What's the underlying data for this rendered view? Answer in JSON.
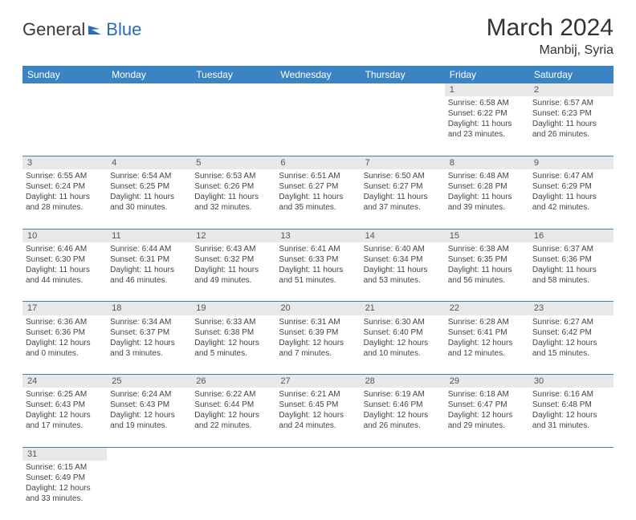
{
  "logo": {
    "part1": "General",
    "part2": "Blue"
  },
  "title": "March 2024",
  "location": "Manbij, Syria",
  "colors": {
    "header_blue": "#3b84c4",
    "daynum_bg": "#e8e8e8",
    "border": "#3b84c4",
    "logo_blue": "#2a6db5",
    "text": "#333333"
  },
  "weekdays": [
    "Sunday",
    "Monday",
    "Tuesday",
    "Wednesday",
    "Thursday",
    "Friday",
    "Saturday"
  ],
  "weeks": [
    {
      "nums": [
        "",
        "",
        "",
        "",
        "",
        "1",
        "2"
      ],
      "cells": [
        [],
        [],
        [],
        [],
        [],
        [
          "Sunrise: 6:58 AM",
          "Sunset: 6:22 PM",
          "Daylight: 11 hours",
          "and 23 minutes."
        ],
        [
          "Sunrise: 6:57 AM",
          "Sunset: 6:23 PM",
          "Daylight: 11 hours",
          "and 26 minutes."
        ]
      ]
    },
    {
      "nums": [
        "3",
        "4",
        "5",
        "6",
        "7",
        "8",
        "9"
      ],
      "cells": [
        [
          "Sunrise: 6:55 AM",
          "Sunset: 6:24 PM",
          "Daylight: 11 hours",
          "and 28 minutes."
        ],
        [
          "Sunrise: 6:54 AM",
          "Sunset: 6:25 PM",
          "Daylight: 11 hours",
          "and 30 minutes."
        ],
        [
          "Sunrise: 6:53 AM",
          "Sunset: 6:26 PM",
          "Daylight: 11 hours",
          "and 32 minutes."
        ],
        [
          "Sunrise: 6:51 AM",
          "Sunset: 6:27 PM",
          "Daylight: 11 hours",
          "and 35 minutes."
        ],
        [
          "Sunrise: 6:50 AM",
          "Sunset: 6:27 PM",
          "Daylight: 11 hours",
          "and 37 minutes."
        ],
        [
          "Sunrise: 6:48 AM",
          "Sunset: 6:28 PM",
          "Daylight: 11 hours",
          "and 39 minutes."
        ],
        [
          "Sunrise: 6:47 AM",
          "Sunset: 6:29 PM",
          "Daylight: 11 hours",
          "and 42 minutes."
        ]
      ]
    },
    {
      "nums": [
        "10",
        "11",
        "12",
        "13",
        "14",
        "15",
        "16"
      ],
      "cells": [
        [
          "Sunrise: 6:46 AM",
          "Sunset: 6:30 PM",
          "Daylight: 11 hours",
          "and 44 minutes."
        ],
        [
          "Sunrise: 6:44 AM",
          "Sunset: 6:31 PM",
          "Daylight: 11 hours",
          "and 46 minutes."
        ],
        [
          "Sunrise: 6:43 AM",
          "Sunset: 6:32 PM",
          "Daylight: 11 hours",
          "and 49 minutes."
        ],
        [
          "Sunrise: 6:41 AM",
          "Sunset: 6:33 PM",
          "Daylight: 11 hours",
          "and 51 minutes."
        ],
        [
          "Sunrise: 6:40 AM",
          "Sunset: 6:34 PM",
          "Daylight: 11 hours",
          "and 53 minutes."
        ],
        [
          "Sunrise: 6:38 AM",
          "Sunset: 6:35 PM",
          "Daylight: 11 hours",
          "and 56 minutes."
        ],
        [
          "Sunrise: 6:37 AM",
          "Sunset: 6:36 PM",
          "Daylight: 11 hours",
          "and 58 minutes."
        ]
      ]
    },
    {
      "nums": [
        "17",
        "18",
        "19",
        "20",
        "21",
        "22",
        "23"
      ],
      "cells": [
        [
          "Sunrise: 6:36 AM",
          "Sunset: 6:36 PM",
          "Daylight: 12 hours",
          "and 0 minutes."
        ],
        [
          "Sunrise: 6:34 AM",
          "Sunset: 6:37 PM",
          "Daylight: 12 hours",
          "and 3 minutes."
        ],
        [
          "Sunrise: 6:33 AM",
          "Sunset: 6:38 PM",
          "Daylight: 12 hours",
          "and 5 minutes."
        ],
        [
          "Sunrise: 6:31 AM",
          "Sunset: 6:39 PM",
          "Daylight: 12 hours",
          "and 7 minutes."
        ],
        [
          "Sunrise: 6:30 AM",
          "Sunset: 6:40 PM",
          "Daylight: 12 hours",
          "and 10 minutes."
        ],
        [
          "Sunrise: 6:28 AM",
          "Sunset: 6:41 PM",
          "Daylight: 12 hours",
          "and 12 minutes."
        ],
        [
          "Sunrise: 6:27 AM",
          "Sunset: 6:42 PM",
          "Daylight: 12 hours",
          "and 15 minutes."
        ]
      ]
    },
    {
      "nums": [
        "24",
        "25",
        "26",
        "27",
        "28",
        "29",
        "30"
      ],
      "cells": [
        [
          "Sunrise: 6:25 AM",
          "Sunset: 6:43 PM",
          "Daylight: 12 hours",
          "and 17 minutes."
        ],
        [
          "Sunrise: 6:24 AM",
          "Sunset: 6:43 PM",
          "Daylight: 12 hours",
          "and 19 minutes."
        ],
        [
          "Sunrise: 6:22 AM",
          "Sunset: 6:44 PM",
          "Daylight: 12 hours",
          "and 22 minutes."
        ],
        [
          "Sunrise: 6:21 AM",
          "Sunset: 6:45 PM",
          "Daylight: 12 hours",
          "and 24 minutes."
        ],
        [
          "Sunrise: 6:19 AM",
          "Sunset: 6:46 PM",
          "Daylight: 12 hours",
          "and 26 minutes."
        ],
        [
          "Sunrise: 6:18 AM",
          "Sunset: 6:47 PM",
          "Daylight: 12 hours",
          "and 29 minutes."
        ],
        [
          "Sunrise: 6:16 AM",
          "Sunset: 6:48 PM",
          "Daylight: 12 hours",
          "and 31 minutes."
        ]
      ]
    },
    {
      "nums": [
        "31",
        "",
        "",
        "",
        "",
        "",
        ""
      ],
      "cells": [
        [
          "Sunrise: 6:15 AM",
          "Sunset: 6:49 PM",
          "Daylight: 12 hours",
          "and 33 minutes."
        ],
        [],
        [],
        [],
        [],
        [],
        []
      ]
    }
  ]
}
